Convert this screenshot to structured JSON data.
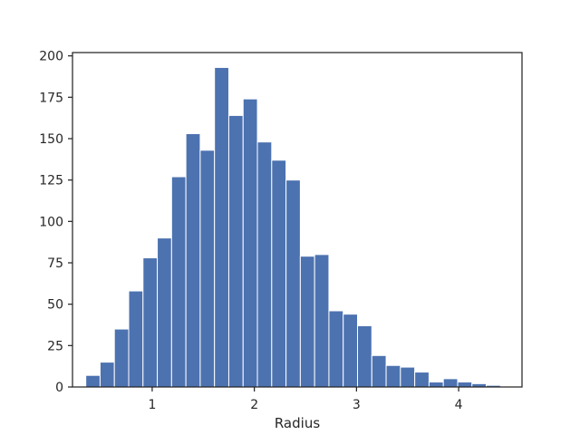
{
  "chart_data": {
    "type": "bar",
    "subtype": "histogram",
    "title": "",
    "xlabel": "Radius",
    "ylabel": "",
    "xlim": [
      0.22,
      4.62
    ],
    "ylim": [
      0,
      202
    ],
    "x_ticks": [
      1,
      2,
      3,
      4
    ],
    "y_ticks": [
      0,
      25,
      50,
      75,
      100,
      125,
      150,
      175,
      200
    ],
    "grid": false,
    "legend": "none",
    "bar_color": "#4c72b0",
    "bin_edges": [
      0.35,
      0.49,
      0.63,
      0.77,
      0.91,
      1.05,
      1.19,
      1.33,
      1.47,
      1.61,
      1.75,
      1.89,
      2.03,
      2.17,
      2.31,
      2.45,
      2.59,
      2.73,
      2.87,
      3.01,
      3.15,
      3.29,
      3.43,
      3.57,
      3.71,
      3.85,
      3.99,
      4.13,
      4.27,
      4.41
    ],
    "counts": [
      7,
      15,
      35,
      58,
      78,
      90,
      127,
      153,
      143,
      193,
      164,
      174,
      148,
      137,
      125,
      79,
      80,
      46,
      44,
      37,
      19,
      13,
      12,
      9,
      3,
      5,
      3,
      2,
      1
    ]
  }
}
